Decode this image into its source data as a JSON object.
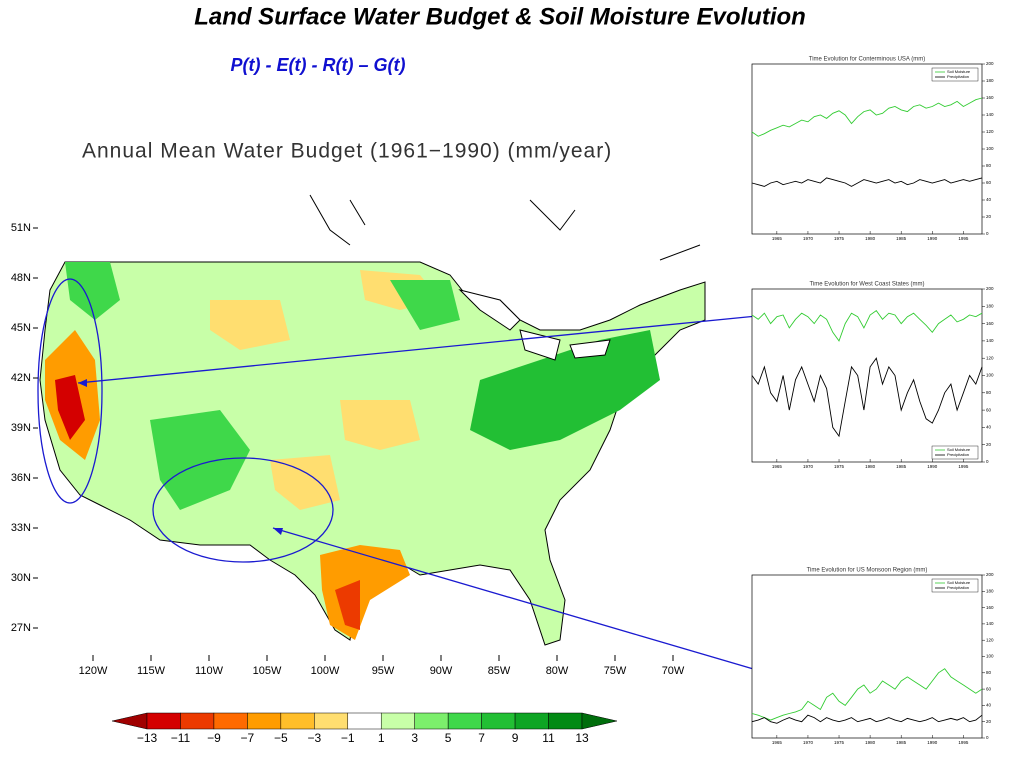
{
  "title": "Land Surface Water Budget & Soil Moisture Evolution",
  "subtitle": "P(t) - E(t) - R(t) – G(t)",
  "map": {
    "title": "Annual Mean Water Budget (1961−1990) (mm/year)",
    "lat_labels": [
      "51N",
      "48N",
      "45N",
      "42N",
      "39N",
      "36N",
      "33N",
      "30N",
      "27N"
    ],
    "lon_labels": [
      "120W",
      "115W",
      "110W",
      "105W",
      "100W",
      "95W",
      "90W",
      "85W",
      "80W",
      "75W",
      "70W"
    ],
    "colorbar": {
      "colors": [
        "#a00000",
        "#d40000",
        "#ec3a00",
        "#ff6a00",
        "#ff9c00",
        "#ffbe2a",
        "#ffde70",
        "#ffffff",
        "#c8ffa8",
        "#7cef6c",
        "#3fd84a",
        "#22bf34",
        "#0ea524",
        "#028a14",
        "#006e0c"
      ],
      "ticks": [
        {
          "value": -13,
          "label": "−13"
        },
        {
          "value": -11,
          "label": "−11"
        },
        {
          "value": -9,
          "label": "−9"
        },
        {
          "value": -7,
          "label": "−7"
        },
        {
          "value": -5,
          "label": "−5"
        },
        {
          "value": -3,
          "label": "−3"
        },
        {
          "value": -1,
          "label": "−1"
        },
        1,
        3,
        5,
        7,
        9,
        11,
        13
      ]
    }
  },
  "chart_data": [
    {
      "type": "line",
      "title": "Time Evolution for Conterminous USA (mm)",
      "legend": "top-right",
      "x": [
        1961,
        1962,
        1963,
        1964,
        1965,
        1966,
        1967,
        1968,
        1969,
        1970,
        1971,
        1972,
        1973,
        1974,
        1975,
        1976,
        1977,
        1978,
        1979,
        1980,
        1981,
        1982,
        1983,
        1984,
        1985,
        1986,
        1987,
        1988,
        1989,
        1990,
        1991,
        1992,
        1993,
        1994,
        1995,
        1996,
        1997,
        1998
      ],
      "xlim": [
        1961,
        1998
      ],
      "xticks": [
        1965,
        1970,
        1975,
        1980,
        1985,
        1990,
        1995
      ],
      "y2lim": [
        0,
        200
      ],
      "y2ticks": [
        0,
        20,
        40,
        60,
        80,
        100,
        120,
        140,
        160,
        180,
        200
      ],
      "series": [
        {
          "name": "Soil Moisture",
          "color": "#33cc33",
          "axis": "y2",
          "values": [
            120,
            115,
            118,
            122,
            125,
            128,
            126,
            130,
            134,
            132,
            138,
            140,
            136,
            142,
            145,
            140,
            130,
            138,
            144,
            146,
            140,
            142,
            148,
            150,
            146,
            144,
            150,
            152,
            148,
            150,
            154,
            150,
            152,
            156,
            150,
            154,
            158,
            160
          ]
        },
        {
          "name": "Precipitation",
          "color": "#000000",
          "axis": "y2",
          "values": [
            60,
            58,
            56,
            60,
            62,
            58,
            60,
            62,
            60,
            64,
            62,
            60,
            66,
            64,
            62,
            60,
            56,
            60,
            64,
            62,
            60,
            62,
            64,
            60,
            62,
            58,
            60,
            64,
            62,
            60,
            62,
            64,
            60,
            62,
            64,
            62,
            64,
            66
          ]
        }
      ]
    },
    {
      "type": "line",
      "title": "Time Evolution for West Coast States (mm)",
      "legend": "bottom-right",
      "x": [
        1961,
        1962,
        1963,
        1964,
        1965,
        1966,
        1967,
        1968,
        1969,
        1970,
        1971,
        1972,
        1973,
        1974,
        1975,
        1976,
        1977,
        1978,
        1979,
        1980,
        1981,
        1982,
        1983,
        1984,
        1985,
        1986,
        1987,
        1988,
        1989,
        1990,
        1991,
        1992,
        1993,
        1994,
        1995,
        1996,
        1997,
        1998
      ],
      "xlim": [
        1961,
        1998
      ],
      "xticks": [
        1965,
        1970,
        1975,
        1980,
        1985,
        1990,
        1995
      ],
      "y2lim": [
        0,
        200
      ],
      "y2ticks": [
        0,
        20,
        40,
        60,
        80,
        100,
        120,
        140,
        160,
        180,
        200
      ],
      "series": [
        {
          "name": "Soil Moisture",
          "color": "#33cc33",
          "axis": "y2",
          "values": [
            170,
            165,
            172,
            160,
            168,
            170,
            155,
            165,
            172,
            168,
            160,
            170,
            165,
            150,
            140,
            160,
            172,
            168,
            155,
            170,
            175,
            165,
            172,
            170,
            160,
            168,
            172,
            165,
            158,
            150,
            160,
            165,
            170,
            162,
            165,
            170,
            168,
            172
          ]
        },
        {
          "name": "Precipitation",
          "color": "#000000",
          "axis": "y2",
          "values": [
            100,
            90,
            110,
            80,
            70,
            100,
            60,
            95,
            110,
            90,
            70,
            100,
            85,
            40,
            30,
            70,
            110,
            100,
            60,
            110,
            120,
            90,
            110,
            100,
            60,
            80,
            95,
            70,
            50,
            45,
            60,
            80,
            90,
            60,
            80,
            100,
            90,
            110
          ]
        }
      ]
    },
    {
      "type": "line",
      "title": "Time Evolution for US Monsoon Region (mm)",
      "legend": "top-right",
      "x": [
        1961,
        1962,
        1963,
        1964,
        1965,
        1966,
        1967,
        1968,
        1969,
        1970,
        1971,
        1972,
        1973,
        1974,
        1975,
        1976,
        1977,
        1978,
        1979,
        1980,
        1981,
        1982,
        1983,
        1984,
        1985,
        1986,
        1987,
        1988,
        1989,
        1990,
        1991,
        1992,
        1993,
        1994,
        1995,
        1996,
        1997,
        1998
      ],
      "xlim": [
        1961,
        1998
      ],
      "xticks": [
        1965,
        1970,
        1975,
        1980,
        1985,
        1990,
        1995
      ],
      "y2lim": [
        0,
        200
      ],
      "y2ticks": [
        0,
        20,
        40,
        60,
        80,
        100,
        120,
        140,
        160,
        180,
        200
      ],
      "series": [
        {
          "name": "Soil Moisture",
          "color": "#33cc33",
          "axis": "y2",
          "values": [
            30,
            28,
            25,
            22,
            25,
            28,
            30,
            32,
            35,
            45,
            40,
            35,
            50,
            55,
            45,
            40,
            50,
            60,
            65,
            55,
            60,
            70,
            65,
            60,
            70,
            75,
            70,
            65,
            60,
            70,
            80,
            85,
            75,
            70,
            65,
            60,
            55,
            60
          ]
        },
        {
          "name": "Precipitation",
          "color": "#000000",
          "axis": "y2",
          "values": [
            20,
            22,
            25,
            20,
            18,
            22,
            25,
            22,
            20,
            28,
            25,
            20,
            25,
            22,
            20,
            22,
            25,
            20,
            22,
            24,
            20,
            22,
            25,
            22,
            20,
            24,
            22,
            20,
            22,
            25,
            20,
            22,
            24,
            22,
            25,
            20,
            22,
            28
          ]
        }
      ]
    }
  ]
}
